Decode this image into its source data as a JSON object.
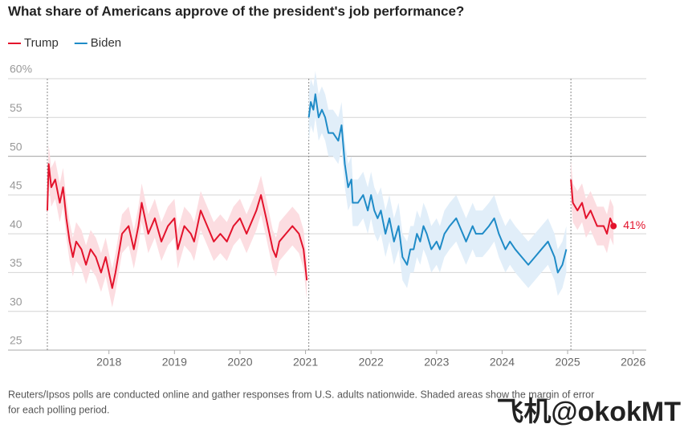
{
  "chart_data": {
    "type": "line",
    "title": "What share of Americans approve of the president's job performance?",
    "note": "Reuters/Ipsos polls are conducted online and gather responses from U.S. adults nationwide. Shaded areas show the margin of error",
    "note_line2": "for each polling period.",
    "watermark": "飞机@okokMT",
    "xlim": [
      2016.46,
      2026.2
    ],
    "xticks": [
      2018,
      2019,
      2020,
      2021,
      2022,
      2023,
      2024,
      2025,
      2026
    ],
    "ylim": [
      25,
      60
    ],
    "yticks": [
      25,
      30,
      35,
      40,
      45,
      50,
      55,
      {
        "value": 60,
        "label": "60%"
      }
    ],
    "grid": true,
    "baseline": 50,
    "inaugurations": [
      2017.06,
      2021.05,
      2025.05
    ],
    "legend": "top-left",
    "series": [
      {
        "name": "Trump",
        "color": "#e3132c",
        "band_color": "#fcdde1",
        "error": 2.5,
        "x": [
          2017.06,
          2017.08,
          2017.12,
          2017.18,
          2017.25,
          2017.3,
          2017.35,
          2017.4,
          2017.45,
          2017.5,
          2017.58,
          2017.65,
          2017.72,
          2017.8,
          2017.88,
          2017.95,
          2018.05,
          2018.1,
          2018.2,
          2018.3,
          2018.38,
          2018.45,
          2018.5,
          2018.6,
          2018.7,
          2018.8,
          2018.9,
          2019.0,
          2019.05,
          2019.15,
          2019.25,
          2019.3,
          2019.4,
          2019.5,
          2019.6,
          2019.7,
          2019.8,
          2019.9,
          2020.0,
          2020.1,
          2020.15,
          2020.25,
          2020.32,
          2020.4,
          2020.5,
          2020.55,
          2020.6,
          2020.7,
          2020.8,
          2020.9,
          2020.97,
          2021.02,
          2023.0,
          2025.05,
          2025.08,
          2025.15,
          2025.22,
          2025.28,
          2025.35,
          2025.4,
          2025.45,
          2025.5,
          2025.55,
          2025.6,
          2025.65,
          2025.7
        ],
        "values": [
          43,
          49,
          46,
          47,
          44,
          46,
          42,
          39,
          37,
          39,
          38,
          36,
          38,
          37,
          35,
          37,
          33,
          35,
          40,
          41,
          38,
          41,
          44,
          40,
          42,
          39,
          41,
          42,
          38,
          41,
          40,
          39,
          43,
          41,
          39,
          40,
          39,
          41,
          42,
          40,
          41,
          43,
          45,
          42,
          38,
          37,
          39,
          40,
          41,
          40,
          38,
          34,
          null,
          47,
          44,
          43,
          44,
          42,
          43,
          42,
          41,
          41,
          41,
          40,
          42,
          41
        ]
      },
      {
        "name": "Biden",
        "color": "#1f8bc7",
        "band_color": "#e1eef9",
        "error": 3,
        "x": [
          2021.05,
          2021.08,
          2021.12,
          2021.15,
          2021.2,
          2021.25,
          2021.3,
          2021.35,
          2021.42,
          2021.5,
          2021.55,
          2021.6,
          2021.65,
          2021.7,
          2021.72,
          2021.8,
          2021.88,
          2021.95,
          2022.0,
          2022.05,
          2022.1,
          2022.15,
          2022.22,
          2022.28,
          2022.35,
          2022.42,
          2022.48,
          2022.55,
          2022.6,
          2022.65,
          2022.7,
          2022.75,
          2022.8,
          2022.85,
          2022.92,
          2023.0,
          2023.05,
          2023.12,
          2023.2,
          2023.3,
          2023.35,
          2023.45,
          2023.55,
          2023.6,
          2023.7,
          2023.8,
          2023.88,
          2023.95,
          2024.05,
          2024.12,
          2024.2,
          2024.3,
          2024.4,
          2024.5,
          2024.6,
          2024.7,
          2024.8,
          2024.85,
          2024.92,
          2024.98
        ],
        "values": [
          55,
          57,
          56,
          58,
          55,
          56,
          55,
          53,
          53,
          52,
          54,
          49,
          46,
          47,
          44,
          44,
          45,
          43,
          45,
          43,
          42,
          43,
          40,
          42,
          39,
          41,
          37,
          36,
          38,
          38,
          40,
          39,
          41,
          40,
          38,
          39,
          38,
          40,
          41,
          42,
          41,
          39,
          41,
          40,
          40,
          41,
          42,
          40,
          38,
          39,
          38,
          37,
          36,
          37,
          38,
          39,
          37,
          35,
          36,
          38
        ]
      }
    ],
    "annotation": {
      "x": 2025.7,
      "value": 41,
      "label": "41%"
    }
  }
}
